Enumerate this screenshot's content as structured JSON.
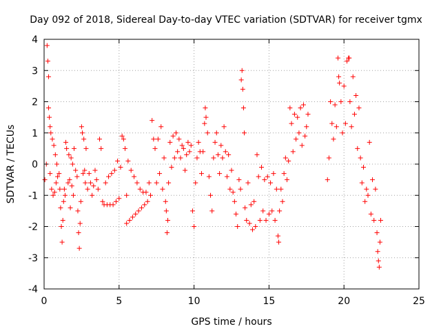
{
  "chart_data": {
    "type": "scatter",
    "title": "Day 092 of 2018, Sidereal Day-to-day VTEC variation (SDTVAR) for receiver tgmx",
    "xlabel": "GPS time / hours",
    "ylabel": "SDTVAR / TECUs",
    "xlim": [
      0,
      25
    ],
    "ylim": [
      -4,
      4
    ],
    "xticks": [
      0,
      5,
      10,
      15,
      20,
      25
    ],
    "yticks": [
      -4,
      -3,
      -2,
      -1,
      0,
      1,
      2,
      3,
      4
    ],
    "grid": true,
    "marker": "+",
    "color": "#ff0000",
    "series": [
      {
        "name": "SDTVAR",
        "points": [
          [
            0.05,
            -0.5
          ],
          [
            0.15,
            0.0
          ],
          [
            0.2,
            3.8
          ],
          [
            0.25,
            3.3
          ],
          [
            0.3,
            2.8
          ],
          [
            0.3,
            1.8
          ],
          [
            0.35,
            1.5
          ],
          [
            0.4,
            -0.3
          ],
          [
            0.4,
            1.2
          ],
          [
            0.45,
            1.0
          ],
          [
            0.5,
            -0.8
          ],
          [
            0.55,
            0.8
          ],
          [
            0.6,
            -1.0
          ],
          [
            0.65,
            0.6
          ],
          [
            0.7,
            -0.9
          ],
          [
            0.75,
            0.3
          ],
          [
            0.8,
            -0.6
          ],
          [
            0.85,
            0.0
          ],
          [
            0.9,
            -0.4
          ],
          [
            1.0,
            -0.3
          ],
          [
            1.05,
            -0.8
          ],
          [
            1.1,
            -1.4
          ],
          [
            1.15,
            -2.0
          ],
          [
            1.2,
            -2.5
          ],
          [
            1.25,
            -1.8
          ],
          [
            1.3,
            -1.2
          ],
          [
            1.35,
            -0.8
          ],
          [
            1.4,
            -1.0
          ],
          [
            1.45,
            0.7
          ],
          [
            1.5,
            0.5
          ],
          [
            1.6,
            -0.6
          ],
          [
            1.65,
            0.3
          ],
          [
            1.7,
            -0.5
          ],
          [
            1.75,
            -1.4
          ],
          [
            1.8,
            0.2
          ],
          [
            1.85,
            -0.7
          ],
          [
            1.9,
            0.0
          ],
          [
            1.95,
            -1.0
          ],
          [
            2.0,
            0.5
          ],
          [
            2.1,
            -0.2
          ],
          [
            2.2,
            -0.4
          ],
          [
            2.25,
            -1.5
          ],
          [
            2.3,
            -2.2
          ],
          [
            2.35,
            -2.7
          ],
          [
            2.4,
            -1.9
          ],
          [
            2.45,
            -1.2
          ],
          [
            2.5,
            1.2
          ],
          [
            2.55,
            1.0
          ],
          [
            2.6,
            -0.3
          ],
          [
            2.65,
            0.8
          ],
          [
            2.7,
            -0.2
          ],
          [
            2.75,
            -0.6
          ],
          [
            2.8,
            0.5
          ],
          [
            2.9,
            -0.8
          ],
          [
            3.0,
            -0.3
          ],
          [
            3.1,
            -0.6
          ],
          [
            3.2,
            -1.0
          ],
          [
            3.3,
            -0.7
          ],
          [
            3.4,
            -0.2
          ],
          [
            3.5,
            -0.5
          ],
          [
            3.6,
            -0.8
          ],
          [
            3.7,
            0.8
          ],
          [
            3.8,
            0.5
          ],
          [
            3.9,
            -1.2
          ],
          [
            4.0,
            -1.3
          ],
          [
            4.1,
            -0.6
          ],
          [
            4.2,
            -1.3
          ],
          [
            4.3,
            -0.4
          ],
          [
            4.4,
            -1.3
          ],
          [
            4.5,
            -0.3
          ],
          [
            4.6,
            -1.3
          ],
          [
            4.7,
            -0.2
          ],
          [
            4.8,
            -1.2
          ],
          [
            4.9,
            0.1
          ],
          [
            5.0,
            -1.1
          ],
          [
            5.1,
            -0.1
          ],
          [
            5.2,
            0.9
          ],
          [
            5.3,
            0.8
          ],
          [
            5.4,
            0.5
          ],
          [
            5.5,
            -1.0
          ],
          [
            5.5,
            -1.9
          ],
          [
            5.6,
            0.1
          ],
          [
            5.7,
            -1.8
          ],
          [
            5.8,
            -0.2
          ],
          [
            5.9,
            -1.7
          ],
          [
            6.0,
            -0.4
          ],
          [
            6.1,
            -1.6
          ],
          [
            6.2,
            -0.6
          ],
          [
            6.3,
            -1.5
          ],
          [
            6.4,
            -0.8
          ],
          [
            6.5,
            -1.4
          ],
          [
            6.6,
            -0.9
          ],
          [
            6.7,
            -1.3
          ],
          [
            6.8,
            -0.9
          ],
          [
            6.9,
            -1.2
          ],
          [
            7.0,
            -0.6
          ],
          [
            7.1,
            -1.0
          ],
          [
            7.2,
            1.4
          ],
          [
            7.3,
            0.8
          ],
          [
            7.4,
            0.5
          ],
          [
            7.5,
            -0.6
          ],
          [
            7.6,
            0.8
          ],
          [
            7.7,
            -0.3
          ],
          [
            7.8,
            1.2
          ],
          [
            7.9,
            -0.8
          ],
          [
            8.0,
            0.2
          ],
          [
            8.1,
            -1.2
          ],
          [
            8.15,
            -1.5
          ],
          [
            8.2,
            -2.2
          ],
          [
            8.25,
            -1.8
          ],
          [
            8.3,
            -0.6
          ],
          [
            8.4,
            0.7
          ],
          [
            8.5,
            -0.1
          ],
          [
            8.6,
            0.9
          ],
          [
            8.7,
            0.2
          ],
          [
            8.8,
            1.0
          ],
          [
            8.9,
            0.4
          ],
          [
            9.0,
            0.8
          ],
          [
            9.1,
            0.2
          ],
          [
            9.2,
            0.6
          ],
          [
            9.3,
            0.5
          ],
          [
            9.4,
            -0.2
          ],
          [
            9.5,
            0.3
          ],
          [
            9.6,
            0.7
          ],
          [
            9.7,
            0.4
          ],
          [
            9.8,
            0.6
          ],
          [
            9.9,
            -1.5
          ],
          [
            10.0,
            -2.0
          ],
          [
            10.1,
            -0.6
          ],
          [
            10.2,
            0.2
          ],
          [
            10.3,
            0.7
          ],
          [
            10.4,
            0.4
          ],
          [
            10.5,
            -0.3
          ],
          [
            10.6,
            0.4
          ],
          [
            10.7,
            1.3
          ],
          [
            10.75,
            1.8
          ],
          [
            10.8,
            1.5
          ],
          [
            10.9,
            1.0
          ],
          [
            11.0,
            -0.4
          ],
          [
            11.1,
            -1.0
          ],
          [
            11.2,
            -1.5
          ],
          [
            11.3,
            0.2
          ],
          [
            11.4,
            0.7
          ],
          [
            11.5,
            1.0
          ],
          [
            11.6,
            0.3
          ],
          [
            11.7,
            -0.3
          ],
          [
            11.8,
            0.6
          ],
          [
            11.9,
            0.2
          ],
          [
            12.0,
            1.2
          ],
          [
            12.1,
            0.4
          ],
          [
            12.2,
            -0.4
          ],
          [
            12.3,
            0.3
          ],
          [
            12.4,
            -0.8
          ],
          [
            12.5,
            -0.2
          ],
          [
            12.6,
            -0.9
          ],
          [
            12.7,
            -1.2
          ],
          [
            12.8,
            -1.6
          ],
          [
            12.9,
            -2.0
          ],
          [
            13.0,
            -0.5
          ],
          [
            13.1,
            -0.8
          ],
          [
            13.15,
            2.7
          ],
          [
            13.2,
            3.0
          ],
          [
            13.25,
            2.4
          ],
          [
            13.3,
            1.8
          ],
          [
            13.35,
            1.0
          ],
          [
            13.4,
            -1.4
          ],
          [
            13.5,
            -1.8
          ],
          [
            13.6,
            -0.6
          ],
          [
            13.7,
            -1.9
          ],
          [
            13.8,
            -1.3
          ],
          [
            13.9,
            -2.1
          ],
          [
            14.0,
            -1.2
          ],
          [
            14.1,
            -2.0
          ],
          [
            14.2,
            0.3
          ],
          [
            14.3,
            -0.4
          ],
          [
            14.4,
            -1.8
          ],
          [
            14.5,
            -0.1
          ],
          [
            14.6,
            -1.5
          ],
          [
            14.7,
            -0.5
          ],
          [
            14.8,
            -1.8
          ],
          [
            14.9,
            -0.4
          ],
          [
            15.0,
            -1.6
          ],
          [
            15.1,
            -0.6
          ],
          [
            15.2,
            -1.5
          ],
          [
            15.3,
            -0.3
          ],
          [
            15.4,
            -1.8
          ],
          [
            15.5,
            -0.8
          ],
          [
            15.6,
            -2.3
          ],
          [
            15.65,
            -2.5
          ],
          [
            15.7,
            -1.5
          ],
          [
            15.8,
            -0.8
          ],
          [
            15.9,
            -1.2
          ],
          [
            16.0,
            -0.3
          ],
          [
            16.1,
            0.2
          ],
          [
            16.2,
            -0.5
          ],
          [
            16.3,
            0.1
          ],
          [
            16.4,
            1.8
          ],
          [
            16.5,
            1.3
          ],
          [
            16.6,
            0.4
          ],
          [
            16.7,
            1.6
          ],
          [
            16.8,
            0.8
          ],
          [
            16.9,
            1.5
          ],
          [
            17.0,
            1.0
          ],
          [
            17.1,
            1.8
          ],
          [
            17.2,
            0.6
          ],
          [
            17.3,
            1.9
          ],
          [
            17.4,
            0.9
          ],
          [
            17.5,
            1.2
          ],
          [
            17.6,
            1.6
          ],
          [
            18.9,
            -0.5
          ],
          [
            19.0,
            0.2
          ],
          [
            19.1,
            2.0
          ],
          [
            19.2,
            1.3
          ],
          [
            19.3,
            0.8
          ],
          [
            19.4,
            1.9
          ],
          [
            19.5,
            1.2
          ],
          [
            19.6,
            3.4
          ],
          [
            19.65,
            2.8
          ],
          [
            19.7,
            2.6
          ],
          [
            19.8,
            2.0
          ],
          [
            19.9,
            1.0
          ],
          [
            20.0,
            2.5
          ],
          [
            20.1,
            1.3
          ],
          [
            20.2,
            3.3
          ],
          [
            20.3,
            3.4
          ],
          [
            20.35,
            3.4
          ],
          [
            20.4,
            2.0
          ],
          [
            20.5,
            1.2
          ],
          [
            20.6,
            2.8
          ],
          [
            20.7,
            1.6
          ],
          [
            20.8,
            2.2
          ],
          [
            20.9,
            0.5
          ],
          [
            21.0,
            1.8
          ],
          [
            21.1,
            0.2
          ],
          [
            21.2,
            -0.6
          ],
          [
            21.3,
            -0.1
          ],
          [
            21.4,
            -1.2
          ],
          [
            21.5,
            -0.8
          ],
          [
            21.6,
            -1.0
          ],
          [
            21.7,
            0.7
          ],
          [
            21.8,
            -1.6
          ],
          [
            21.9,
            -0.5
          ],
          [
            22.0,
            -1.8
          ],
          [
            22.1,
            -0.8
          ],
          [
            22.2,
            -2.2
          ],
          [
            22.25,
            -2.8
          ],
          [
            22.3,
            -3.1
          ],
          [
            22.35,
            -3.3
          ],
          [
            22.4,
            -2.5
          ],
          [
            22.45,
            -1.8
          ]
        ]
      }
    ]
  }
}
